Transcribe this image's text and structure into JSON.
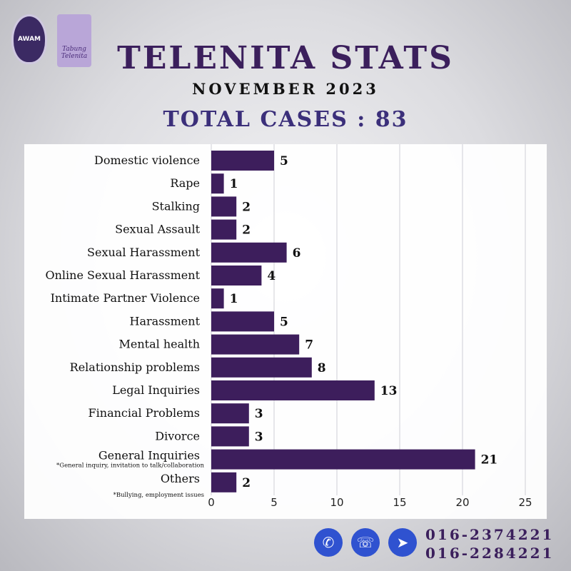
{
  "header": {
    "title": "TELENITA STATS",
    "subtitle": "NOVEMBER 2023",
    "total": "TOTAL CASES : 83",
    "logo_awam_text": "AWAM",
    "logo_tabung_text": "Tabung Telenita"
  },
  "contact": {
    "icons": [
      "phone-icon",
      "whatsapp-icon",
      "telegram-icon"
    ],
    "phone1": "016-2374221",
    "phone2": "016-2284221"
  },
  "colors": {
    "bar": "#3d1e5c",
    "title": "#3b1f5c",
    "total": "#3b2f7a",
    "icon_bg": "#2f52d0"
  },
  "chart_data": {
    "type": "bar",
    "orientation": "horizontal",
    "categories": [
      "Domestic violence",
      "Rape",
      "Stalking",
      "Sexual Assault",
      "Sexual Harassment",
      "Online Sexual Harassment",
      "Intimate Partner Violence",
      "Harassment",
      "Mental health",
      "Relationship problems",
      "Legal Inquiries",
      "Financial Problems",
      "Divorce",
      "General Inquiries",
      "Others"
    ],
    "notes": {
      "General Inquiries": "*General inquiry, invitation to talk/collaboration",
      "Others": "*Bullying,  employment issues"
    },
    "values": [
      5,
      1,
      2,
      2,
      6,
      4,
      1,
      5,
      7,
      8,
      13,
      3,
      3,
      21,
      2
    ],
    "xlim": [
      0,
      25
    ],
    "xticks": [
      0,
      5,
      10,
      15,
      20,
      25
    ],
    "grid": true,
    "data_labels": true
  }
}
